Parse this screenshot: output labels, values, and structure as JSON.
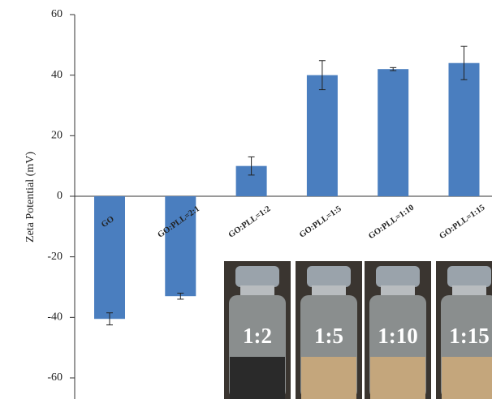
{
  "chart_data": {
    "type": "bar",
    "y_label": "Zeta Potential (mV)",
    "categories": [
      "GO",
      "GO:PLL=2:1",
      "GO:PLL=1:2",
      "GO:PLL=1:5",
      "GO:PLL=1:10",
      "GO:PLL=1:15"
    ],
    "values": [
      -40.5,
      -33,
      10,
      40,
      42,
      44
    ],
    "errors": [
      2,
      1,
      3,
      4.8,
      0.5,
      5.5
    ],
    "color": "#4a7ebf",
    "ylim": [
      -60,
      60
    ],
    "yticks": [
      -60,
      -40,
      -20,
      0,
      20,
      40,
      60
    ],
    "inset_labels": [
      "1:2",
      "1:5",
      "1:10",
      "1:15"
    ]
  }
}
